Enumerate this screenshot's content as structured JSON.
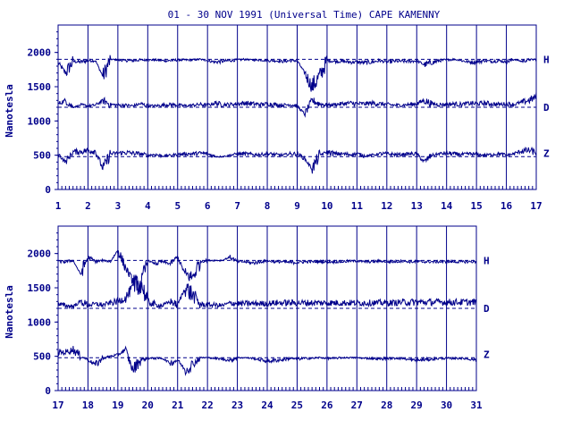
{
  "colors": {
    "ink": "#00008b",
    "background": "#ffffff"
  },
  "title": "01 - 30 NOV 1991 (Universal Time) CAPE KAMENNY",
  "chart_data": [
    {
      "type": "line",
      "panel": "top",
      "x_ticks": [
        "1",
        "2",
        "3",
        "4",
        "5",
        "6",
        "7",
        "8",
        "9",
        "10",
        "11",
        "12",
        "13",
        "14",
        "15",
        "16",
        "17"
      ],
      "xlim": [
        1,
        17
      ],
      "ylim": [
        0,
        2400
      ],
      "y_ticks": [
        "0",
        "500",
        "1000",
        "1500",
        "2000"
      ],
      "ylabel": "Nanotesla",
      "series": [
        {
          "name": "H",
          "baseline": 1900,
          "values": [
            1850,
            1700,
            1870,
            1860,
            1880,
            1880,
            1650,
            1900,
            1890,
            1880,
            1880,
            1890,
            1890,
            1890,
            1880,
            1880,
            1890,
            1890,
            1890,
            1900,
            1880,
            1860,
            1870,
            1880,
            1890,
            1900,
            1890,
            1890,
            1880,
            1880,
            1870,
            1880,
            1880,
            1700,
            1500,
            1650,
            1880,
            1870,
            1870,
            1860,
            1860,
            1850,
            1860,
            1880,
            1860,
            1870,
            1870,
            1870,
            1880,
            1820,
            1850,
            1880,
            1890,
            1900,
            1880,
            1860,
            1860,
            1880,
            1870,
            1880,
            1860,
            1900,
            1870,
            1890,
            1900
          ]
        },
        {
          "name": "D",
          "baseline": 1200,
          "values": [
            1250,
            1300,
            1200,
            1230,
            1220,
            1230,
            1300,
            1240,
            1230,
            1230,
            1220,
            1250,
            1220,
            1220,
            1230,
            1240,
            1230,
            1220,
            1230,
            1240,
            1230,
            1260,
            1240,
            1240,
            1250,
            1260,
            1250,
            1240,
            1250,
            1240,
            1230,
            1240,
            1220,
            1100,
            1300,
            1250,
            1230,
            1240,
            1250,
            1260,
            1250,
            1250,
            1260,
            1250,
            1240,
            1230,
            1230,
            1240,
            1250,
            1300,
            1250,
            1240,
            1240,
            1250,
            1240,
            1260,
            1250,
            1260,
            1250,
            1240,
            1250,
            1240,
            1270,
            1300,
            1350
          ]
        },
        {
          "name": "Z",
          "baseline": 480,
          "values": [
            520,
            400,
            550,
            550,
            570,
            560,
            300,
            520,
            530,
            540,
            530,
            520,
            500,
            510,
            490,
            500,
            510,
            520,
            520,
            530,
            520,
            480,
            480,
            500,
            520,
            520,
            510,
            510,
            520,
            510,
            500,
            520,
            520,
            450,
            300,
            500,
            550,
            520,
            520,
            510,
            520,
            490,
            500,
            520,
            520,
            510,
            510,
            520,
            520,
            400,
            500,
            520,
            530,
            520,
            510,
            520,
            510,
            500,
            510,
            520,
            500,
            520,
            560,
            570,
            540
          ]
        }
      ]
    },
    {
      "type": "line",
      "panel": "bottom",
      "x_ticks": [
        "17",
        "18",
        "19",
        "20",
        "21",
        "22",
        "23",
        "24",
        "25",
        "26",
        "27",
        "28",
        "29",
        "30",
        "31"
      ],
      "xlim": [
        17,
        31
      ],
      "ylim": [
        0,
        2400
      ],
      "y_ticks": [
        "0",
        "500",
        "1000",
        "1500",
        "2000"
      ],
      "ylabel": "Nanotesla",
      "series": [
        {
          "name": "H",
          "baseline": 1900,
          "values": [
            1880,
            1880,
            1900,
            1700,
            1950,
            1880,
            1900,
            1880,
            2050,
            1800,
            1600,
            1500,
            1900,
            1850,
            1880,
            1850,
            1950,
            1700,
            1650,
            1880,
            1900,
            1900,
            1900,
            1950,
            1880,
            1880,
            1860,
            1880,
            1890,
            1880,
            1880,
            1870,
            1870,
            1880,
            1880,
            1880,
            1880,
            1880,
            1880,
            1890,
            1890,
            1880,
            1880,
            1890,
            1880,
            1880,
            1890,
            1880,
            1880,
            1880,
            1880,
            1880,
            1880,
            1880,
            1880,
            1880,
            1880
          ]
        },
        {
          "name": "D",
          "baseline": 1200,
          "values": [
            1260,
            1240,
            1230,
            1300,
            1250,
            1260,
            1250,
            1280,
            1300,
            1350,
            1500,
            1600,
            1300,
            1250,
            1240,
            1300,
            1250,
            1500,
            1400,
            1260,
            1250,
            1250,
            1240,
            1280,
            1270,
            1270,
            1270,
            1270,
            1270,
            1280,
            1280,
            1280,
            1280,
            1280,
            1280,
            1280,
            1280,
            1280,
            1280,
            1280,
            1280,
            1280,
            1280,
            1280,
            1280,
            1280,
            1290,
            1290,
            1290,
            1290,
            1290,
            1290,
            1290,
            1290,
            1290,
            1290,
            1290
          ]
        },
        {
          "name": "Z",
          "baseline": 480,
          "values": [
            560,
            560,
            600,
            500,
            450,
            380,
            470,
            500,
            520,
            600,
            300,
            450,
            470,
            470,
            470,
            400,
            450,
            300,
            380,
            480,
            480,
            470,
            460,
            440,
            480,
            480,
            470,
            450,
            430,
            440,
            450,
            470,
            460,
            470,
            470,
            480,
            470,
            470,
            480,
            480,
            480,
            470,
            470,
            460,
            470,
            470,
            470,
            450,
            440,
            450,
            460,
            470,
            470,
            470,
            470,
            460,
            450
          ]
        }
      ]
    }
  ]
}
